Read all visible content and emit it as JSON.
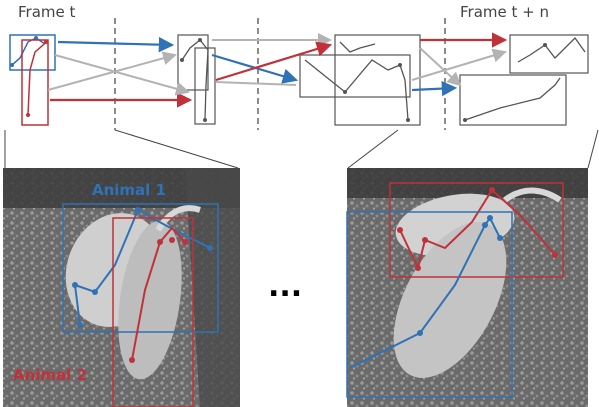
{
  "labels": {
    "frame_start": "Frame t",
    "frame_end": "Frame t + n",
    "ellipsis": "...",
    "animal1": "Animal 1",
    "animal2": "Animal 2"
  },
  "colors": {
    "animal1": "#2f72b5",
    "animal2": "#c0313a",
    "gray_arrow": "#b3b3b3",
    "skeleton": "#555555",
    "dashed": "#666666"
  }
}
